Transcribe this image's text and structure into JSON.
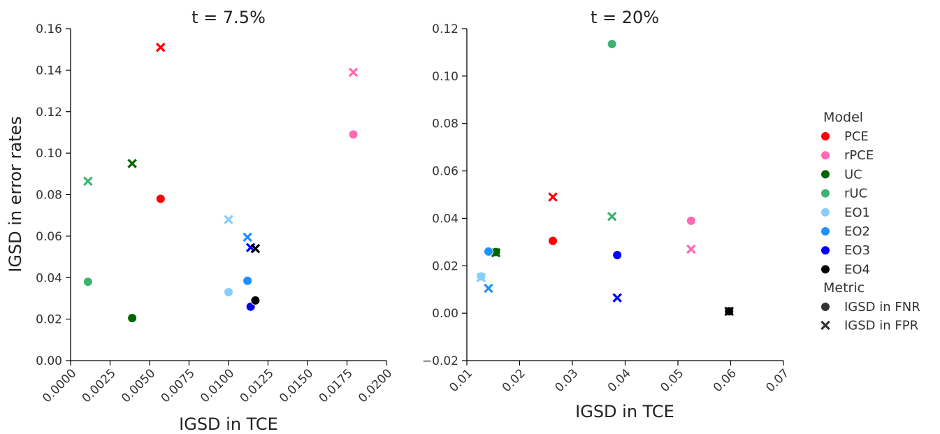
{
  "models": [
    {
      "name": "PCE",
      "color": "#ff0000"
    },
    {
      "name": "rPCE",
      "color": "#ff69b4"
    },
    {
      "name": "UC",
      "color": "#006400"
    },
    {
      "name": "rUC",
      "color": "#3cb371"
    },
    {
      "name": "EO1",
      "color": "#87cefa"
    },
    {
      "name": "EO2",
      "color": "#1e90ff"
    },
    {
      "name": "EO3",
      "color": "#0000ff"
    },
    {
      "name": "EO4",
      "color": "#000000"
    }
  ],
  "legend": {
    "model_title": "Model",
    "metric_title": "Metric",
    "metrics": [
      {
        "label": "IGSD in FNR",
        "marker": "circle"
      },
      {
        "label": "IGSD in FPR",
        "marker": "x"
      }
    ],
    "placement": "right"
  },
  "chart_data": [
    {
      "type": "scatter",
      "title": "t = 7.5%",
      "xlabel": "IGSD in TCE",
      "ylabel": "IGSD in error rates",
      "xlim": [
        0.0,
        0.02
      ],
      "ylim": [
        0.0,
        0.16
      ],
      "xticks": [
        "0.0000",
        "0.0025",
        "0.0050",
        "0.0075",
        "0.0100",
        "0.0125",
        "0.0150",
        "0.0175",
        "0.0200"
      ],
      "yticks": [
        "0.00",
        "0.02",
        "0.04",
        "0.06",
        "0.08",
        "0.10",
        "0.12",
        "0.14",
        "0.16"
      ],
      "grid": false,
      "series": [
        {
          "name": "PCE",
          "fnr": [
            0.0057,
            0.078
          ],
          "fpr": [
            0.0057,
            0.151
          ]
        },
        {
          "name": "rPCE",
          "fnr": [
            0.0179,
            0.109
          ],
          "fpr": [
            0.0179,
            0.139
          ]
        },
        {
          "name": "UC",
          "fnr": [
            0.0039,
            0.0205
          ],
          "fpr": [
            0.0039,
            0.095
          ]
        },
        {
          "name": "rUC",
          "fnr": [
            0.0011,
            0.038
          ],
          "fpr": [
            0.0011,
            0.0865
          ]
        },
        {
          "name": "EO1",
          "fnr": [
            0.01,
            0.033
          ],
          "fpr": [
            0.01,
            0.068
          ]
        },
        {
          "name": "EO2",
          "fnr": [
            0.0112,
            0.0385
          ],
          "fpr": [
            0.0112,
            0.0595
          ]
        },
        {
          "name": "EO3",
          "fnr": [
            0.0114,
            0.026
          ],
          "fpr": [
            0.0114,
            0.0545
          ]
        },
        {
          "name": "EO4",
          "fnr": [
            0.0117,
            0.029
          ],
          "fpr": [
            0.0117,
            0.054
          ]
        }
      ]
    },
    {
      "type": "scatter",
      "title": "t = 20%",
      "xlabel": "IGSD in TCE",
      "ylabel": "",
      "xlim": [
        0.01,
        0.07
      ],
      "ylim": [
        -0.02,
        0.12
      ],
      "xticks": [
        "0.01",
        "0.02",
        "0.03",
        "0.04",
        "0.05",
        "0.06",
        "0.07"
      ],
      "yticks": [
        "−0.02",
        "0.00",
        "0.02",
        "0.04",
        "0.06",
        "0.08",
        "0.10",
        "0.12"
      ],
      "grid": false,
      "series": [
        {
          "name": "PCE",
          "fnr": [
            0.0263,
            0.0305
          ],
          "fpr": [
            0.0263,
            0.049
          ]
        },
        {
          "name": "rPCE",
          "fnr": [
            0.0525,
            0.039
          ],
          "fpr": [
            0.0525,
            0.027
          ]
        },
        {
          "name": "UC",
          "fnr": [
            0.0155,
            0.0258
          ],
          "fpr": [
            0.0155,
            0.0255
          ]
        },
        {
          "name": "rUC",
          "fnr": [
            0.0375,
            0.1135
          ],
          "fpr": [
            0.0375,
            0.0408
          ]
        },
        {
          "name": "EO1",
          "fnr": [
            0.0127,
            0.0155
          ],
          "fpr": [
            0.0127,
            0.015
          ]
        },
        {
          "name": "EO2",
          "fnr": [
            0.0141,
            0.026
          ],
          "fpr": [
            0.0141,
            0.0105
          ]
        },
        {
          "name": "EO3",
          "fnr": [
            0.0385,
            0.0245
          ],
          "fpr": [
            0.0385,
            0.0065
          ]
        },
        {
          "name": "EO4",
          "fnr": [
            0.0597,
            0.0008
          ],
          "fpr": [
            0.0597,
            0.0008
          ]
        }
      ]
    }
  ]
}
